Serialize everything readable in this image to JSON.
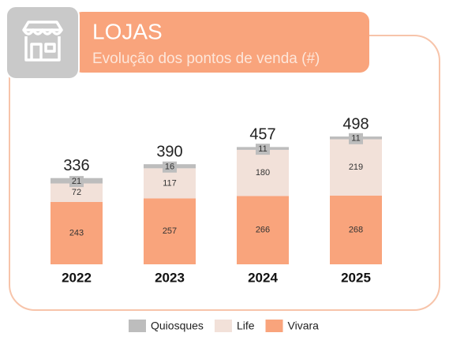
{
  "chart_data": {
    "type": "stacked-bar",
    "title": "LOJAS",
    "subtitle": "Evolução dos pontos de venda (#)",
    "categories": [
      "2022",
      "2023",
      "2024",
      "2025"
    ],
    "series": [
      {
        "name": "Vivara",
        "color": "#f9a47c",
        "values": [
          243,
          257,
          266,
          268
        ]
      },
      {
        "name": "Life",
        "color": "#f2e1d9",
        "values": [
          72,
          117,
          180,
          219
        ]
      },
      {
        "name": "Quiosques",
        "color": "#bdbdbd",
        "values": [
          21,
          16,
          11,
          11
        ]
      }
    ],
    "totals": [
      336,
      390,
      457,
      498
    ]
  }
}
